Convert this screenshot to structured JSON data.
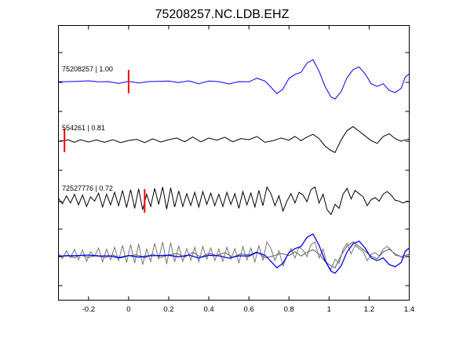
{
  "chart_data": {
    "type": "line",
    "title": "75208257.NC.LDB.EHZ",
    "xlabel": "",
    "ylabel": "",
    "xlim": [
      -0.35,
      1.4
    ],
    "x_ticks": [
      -0.2,
      0,
      0.2,
      0.4,
      0.6,
      0.8,
      1,
      1.2,
      1.4
    ],
    "x_tick_labels": [
      "-0.2",
      "0",
      "0.2",
      "0.4",
      "0.6",
      "0.8",
      "1",
      "1.2",
      "1.4"
    ],
    "grid": false,
    "traces": [
      {
        "name": "75208257 | 1.00",
        "color": "#0000ff",
        "pick_time": 0.0,
        "pick_color": "#ff0000",
        "points": [
          [
            -0.35,
            0.02
          ],
          [
            -0.3,
            0.03
          ],
          [
            -0.25,
            0.04
          ],
          [
            -0.2,
            0.06
          ],
          [
            -0.15,
            0.02
          ],
          [
            -0.1,
            0.03
          ],
          [
            -0.05,
            -0.04
          ],
          [
            0,
            0.04
          ],
          [
            0.05,
            -0.02
          ],
          [
            0.1,
            0.03
          ],
          [
            0.15,
            0.04
          ],
          [
            0.2,
            0.05
          ],
          [
            0.25,
            -0.01
          ],
          [
            0.3,
            0.06
          ],
          [
            0.35,
            -0.05
          ],
          [
            0.4,
            0.05
          ],
          [
            0.45,
            0.03
          ],
          [
            0.5,
            -0.06
          ],
          [
            0.55,
            0.03
          ],
          [
            0.6,
            0.02
          ],
          [
            0.64,
            0.16
          ],
          [
            0.68,
            0.05
          ],
          [
            0.71,
            -0.18
          ],
          [
            0.74,
            -0.42
          ],
          [
            0.77,
            -0.25
          ],
          [
            0.8,
            0.15
          ],
          [
            0.83,
            0.3
          ],
          [
            0.86,
            0.38
          ],
          [
            0.89,
            0.72
          ],
          [
            0.92,
            0.85
          ],
          [
            0.95,
            0.42
          ],
          [
            0.98,
            -0.15
          ],
          [
            1.01,
            -0.55
          ],
          [
            1.03,
            -0.62
          ],
          [
            1.06,
            -0.35
          ],
          [
            1.09,
            0.18
          ],
          [
            1.12,
            0.48
          ],
          [
            1.15,
            0.58
          ],
          [
            1.18,
            0.32
          ],
          [
            1.21,
            -0.05
          ],
          [
            1.24,
            -0.15
          ],
          [
            1.27,
            -0.05
          ],
          [
            1.3,
            -0.3
          ],
          [
            1.33,
            -0.38
          ],
          [
            1.36,
            -0.22
          ],
          [
            1.38,
            0.2
          ],
          [
            1.4,
            0.32
          ]
        ]
      },
      {
        "name": "554261 | 0.81",
        "color": "#000000",
        "pick_time": -0.32,
        "pick_color": "#ff0000",
        "points": [
          [
            -0.35,
            0.0
          ],
          [
            -0.3,
            0.05
          ],
          [
            -0.27,
            -0.04
          ],
          [
            -0.24,
            0.06
          ],
          [
            -0.2,
            -0.03
          ],
          [
            -0.16,
            0.05
          ],
          [
            -0.12,
            -0.04
          ],
          [
            -0.08,
            0.06
          ],
          [
            -0.04,
            -0.05
          ],
          [
            0,
            0.03
          ],
          [
            0.04,
            0.07
          ],
          [
            0.08,
            -0.05
          ],
          [
            0.12,
            0.09
          ],
          [
            0.16,
            -0.03
          ],
          [
            0.2,
            0.06
          ],
          [
            0.24,
            0.12
          ],
          [
            0.28,
            -0.02
          ],
          [
            0.32,
            0.16
          ],
          [
            0.36,
            -0.02
          ],
          [
            0.4,
            0.12
          ],
          [
            0.44,
            0.04
          ],
          [
            0.48,
            0.15
          ],
          [
            0.52,
            -0.02
          ],
          [
            0.56,
            0.1
          ],
          [
            0.6,
            0.06
          ],
          [
            0.64,
            0.18
          ],
          [
            0.68,
            -0.04
          ],
          [
            0.72,
            0.02
          ],
          [
            0.76,
            0.12
          ],
          [
            0.8,
            0.04
          ],
          [
            0.83,
            0.18
          ],
          [
            0.86,
            0.02
          ],
          [
            0.89,
            0.16
          ],
          [
            0.92,
            0.26
          ],
          [
            0.95,
            0.1
          ],
          [
            0.98,
            -0.18
          ],
          [
            1.01,
            -0.35
          ],
          [
            1.03,
            -0.42
          ],
          [
            1.06,
            0.05
          ],
          [
            1.09,
            0.4
          ],
          [
            1.12,
            0.55
          ],
          [
            1.15,
            0.38
          ],
          [
            1.18,
            0.2
          ],
          [
            1.21,
            0.02
          ],
          [
            1.24,
            -0.08
          ],
          [
            1.27,
            0.18
          ],
          [
            1.3,
            0.28
          ],
          [
            1.33,
            0.1
          ],
          [
            1.36,
            0.0
          ],
          [
            1.38,
            0.05
          ],
          [
            1.4,
            0.08
          ]
        ]
      },
      {
        "name": "72527776 | 0.72",
        "color": "#000000",
        "pick_time": 0.08,
        "pick_color": "#ff0000",
        "points": [
          [
            -0.35,
            0.12
          ],
          [
            -0.33,
            -0.08
          ],
          [
            -0.31,
            0.22
          ],
          [
            -0.29,
            -0.05
          ],
          [
            -0.27,
            0.28
          ],
          [
            -0.25,
            -0.12
          ],
          [
            -0.23,
            0.25
          ],
          [
            -0.21,
            -0.18
          ],
          [
            -0.19,
            0.18
          ],
          [
            -0.17,
            0.02
          ],
          [
            -0.15,
            0.32
          ],
          [
            -0.13,
            -0.2
          ],
          [
            -0.11,
            0.28
          ],
          [
            -0.09,
            -0.12
          ],
          [
            -0.07,
            0.35
          ],
          [
            -0.05,
            -0.15
          ],
          [
            -0.03,
            0.42
          ],
          [
            -0.01,
            -0.22
          ],
          [
            0.01,
            0.45
          ],
          [
            0.03,
            -0.25
          ],
          [
            0.05,
            0.48
          ],
          [
            0.07,
            -0.3
          ],
          [
            0.09,
            0.28
          ],
          [
            0.11,
            -0.18
          ],
          [
            0.13,
            0.5
          ],
          [
            0.15,
            -0.1
          ],
          [
            0.17,
            0.55
          ],
          [
            0.19,
            -0.28
          ],
          [
            0.21,
            0.52
          ],
          [
            0.23,
            -0.2
          ],
          [
            0.25,
            0.4
          ],
          [
            0.27,
            -0.18
          ],
          [
            0.29,
            0.3
          ],
          [
            0.31,
            -0.14
          ],
          [
            0.33,
            0.35
          ],
          [
            0.35,
            -0.2
          ],
          [
            0.37,
            0.38
          ],
          [
            0.39,
            -0.1
          ],
          [
            0.41,
            0.32
          ],
          [
            0.43,
            -0.15
          ],
          [
            0.45,
            0.28
          ],
          [
            0.47,
            -0.18
          ],
          [
            0.49,
            0.35
          ],
          [
            0.51,
            -0.1
          ],
          [
            0.53,
            0.3
          ],
          [
            0.55,
            -0.25
          ],
          [
            0.57,
            0.38
          ],
          [
            0.59,
            -0.12
          ],
          [
            0.61,
            0.32
          ],
          [
            0.63,
            -0.2
          ],
          [
            0.65,
            0.42
          ],
          [
            0.67,
            -0.15
          ],
          [
            0.69,
            0.55
          ],
          [
            0.71,
            0.3
          ],
          [
            0.73,
            -0.15
          ],
          [
            0.75,
            0.22
          ],
          [
            0.77,
            -0.35
          ],
          [
            0.79,
            0.02
          ],
          [
            0.81,
            0.3
          ],
          [
            0.83,
            -0.05
          ],
          [
            0.85,
            0.35
          ],
          [
            0.87,
            0.25
          ],
          [
            0.89,
            0.0
          ],
          [
            0.91,
            0.45
          ],
          [
            0.93,
            0.55
          ],
          [
            0.95,
            -0.05
          ],
          [
            0.97,
            0.28
          ],
          [
            0.99,
            -0.3
          ],
          [
            1.01,
            -0.48
          ],
          [
            1.03,
            -0.1
          ],
          [
            1.05,
            -0.25
          ],
          [
            1.07,
            0.28
          ],
          [
            1.09,
            0.5
          ],
          [
            1.11,
            0.1
          ],
          [
            1.13,
            0.42
          ],
          [
            1.15,
            0.3
          ],
          [
            1.17,
            0.18
          ],
          [
            1.19,
            -0.15
          ],
          [
            1.21,
            0.08
          ],
          [
            1.23,
            0.15
          ],
          [
            1.25,
            0.02
          ],
          [
            1.27,
            0.28
          ],
          [
            1.29,
            0.38
          ],
          [
            1.31,
            0.25
          ],
          [
            1.33,
            0.05
          ],
          [
            1.35,
            0.02
          ],
          [
            1.37,
            -0.05
          ],
          [
            1.39,
            0.02
          ],
          [
            1.4,
            0.0
          ]
        ]
      }
    ],
    "overlay": {
      "series": [
        "75208257 | 1.00",
        "554261 | 0.81",
        "72527776 | 0.72"
      ],
      "colors": [
        "#0000ff",
        "#555555",
        "#777777"
      ]
    }
  }
}
